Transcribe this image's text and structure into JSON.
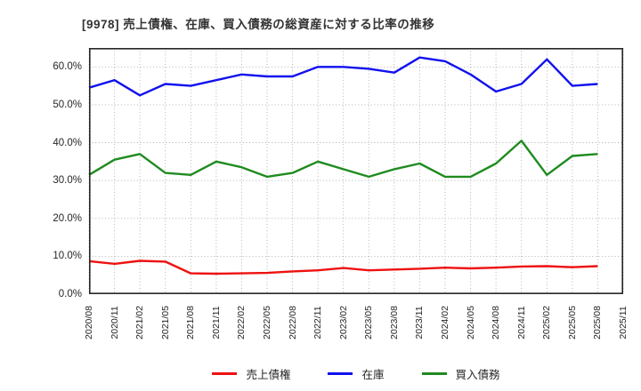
{
  "title": "[9978]  売上債権、在庫、買入債務の総資産に対する比率の推移",
  "chart_data": {
    "type": "line",
    "title": "[9978]  売上債権、在庫、買入債務の総資産に対する比率の推移",
    "x_ticks": [
      "2020/08",
      "2020/11",
      "2021/02",
      "2021/05",
      "2021/08",
      "2021/11",
      "2022/02",
      "2022/05",
      "2022/08",
      "2022/11",
      "2023/02",
      "2023/05",
      "2023/08",
      "2023/11",
      "2024/02",
      "2024/05",
      "2024/08",
      "2024/11",
      "2025/02",
      "2025/05",
      "2025/08",
      "2025/11"
    ],
    "x": [
      "2020/08",
      "2020/11",
      "2021/02",
      "2021/05",
      "2021/08",
      "2021/11",
      "2022/02",
      "2022/05",
      "2022/08",
      "2022/11",
      "2023/02",
      "2023/05",
      "2023/08",
      "2023/11",
      "2024/02",
      "2024/05",
      "2024/08",
      "2024/11",
      "2025/02",
      "2025/05",
      "2025/08"
    ],
    "series": [
      {
        "key": "receivables",
        "name": "売上債権",
        "color": "#ee1111",
        "values": [
          8.7,
          8.0,
          8.8,
          8.6,
          5.5,
          5.4,
          5.5,
          5.6,
          6.0,
          6.3,
          6.9,
          6.3,
          6.5,
          6.7,
          7.0,
          6.8,
          7.0,
          7.3,
          7.4,
          7.1,
          7.4
        ]
      },
      {
        "key": "inventory",
        "name": "在庫",
        "color": "#1111ee",
        "values": [
          54.5,
          56.5,
          52.5,
          55.5,
          55.0,
          56.5,
          58.0,
          57.5,
          57.5,
          60.0,
          60.0,
          59.5,
          58.5,
          62.5,
          61.5,
          58.0,
          53.5,
          55.5,
          62.0,
          55.0,
          55.5
        ]
      },
      {
        "key": "payables",
        "name": "買入債務",
        "color": "#1f8b1f",
        "values": [
          31.5,
          35.5,
          37.0,
          32.0,
          31.5,
          35.0,
          33.5,
          31.0,
          32.0,
          35.0,
          33.0,
          31.0,
          33.0,
          34.5,
          31.0,
          31.0,
          34.5,
          40.5,
          31.5,
          36.5,
          37.0
        ]
      }
    ],
    "y_ticks": {
      "values": [
        0,
        10,
        20,
        30,
        40,
        50,
        60
      ],
      "labels": [
        "0.0%",
        "10.0%",
        "20.0%",
        "30.0%",
        "40.0%",
        "50.0%",
        "60.0%"
      ]
    },
    "ylim": [
      0,
      65
    ],
    "xlabel": "",
    "ylabel": "",
    "grid": true,
    "grid_style": "dotted",
    "legend_position": "bottom"
  },
  "colors": {
    "grid": "#aaaaaa",
    "spine": "#262626",
    "text": "#262626",
    "title_text": "#333333",
    "background": "#ffffff"
  }
}
